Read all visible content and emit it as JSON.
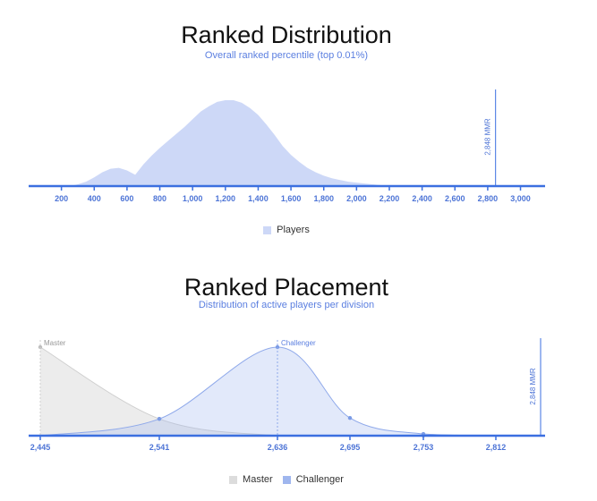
{
  "chart_data": [
    {
      "type": "area",
      "title": "Ranked Distribution",
      "subtitle": "Overall ranked percentile (top 0.01%)",
      "x_ticks": [
        200,
        400,
        600,
        800,
        1000,
        1200,
        1400,
        1600,
        1800,
        2000,
        2200,
        2400,
        2600,
        2800,
        3000
      ],
      "x_tick_labels": [
        "200",
        "400",
        "600",
        "800",
        "1,000",
        "1,200",
        "1,400",
        "1,600",
        "1,800",
        "2,000",
        "2,200",
        "2,400",
        "2,600",
        "2,800",
        "3,000"
      ],
      "xlim": [
        0,
        3150
      ],
      "ylim": [
        0,
        1.0
      ],
      "series": [
        {
          "name": "Players",
          "color": "#cdd8f7",
          "x": [
            250,
            300,
            350,
            400,
            450,
            500,
            550,
            600,
            650,
            700,
            750,
            800,
            850,
            900,
            950,
            1000,
            1050,
            1100,
            1150,
            1200,
            1250,
            1300,
            1350,
            1400,
            1450,
            1500,
            1550,
            1600,
            1650,
            1700,
            1750,
            1800,
            1850,
            1900,
            1950,
            2000,
            2050,
            2100,
            2150,
            2200,
            2250,
            2300
          ],
          "y": [
            0.0,
            0.02,
            0.05,
            0.1,
            0.16,
            0.2,
            0.21,
            0.18,
            0.13,
            0.25,
            0.35,
            0.44,
            0.52,
            0.6,
            0.68,
            0.77,
            0.86,
            0.92,
            0.97,
            0.99,
            0.99,
            0.96,
            0.9,
            0.82,
            0.71,
            0.59,
            0.46,
            0.36,
            0.28,
            0.21,
            0.16,
            0.12,
            0.09,
            0.07,
            0.05,
            0.04,
            0.03,
            0.02,
            0.01,
            0.01,
            0.0,
            0.0
          ]
        }
      ],
      "marker": {
        "x": 2848,
        "label": "2,848 MMR"
      },
      "legend": [
        "Players"
      ],
      "legend_position": "bottom"
    },
    {
      "type": "area",
      "title": "Ranked Placement",
      "subtitle": "Distribution of active players per division",
      "x_ticks": [
        2445,
        2541,
        2636,
        2695,
        2753,
        2812
      ],
      "x_tick_labels": [
        "2,445",
        "2,541",
        "2,636",
        "2,695",
        "2,753",
        "2,812"
      ],
      "xlim": [
        2445,
        2870
      ],
      "ylim": [
        0,
        1.0
      ],
      "series": [
        {
          "name": "Master",
          "color": "#dcdcdc",
          "x": [
            2445,
            2541,
            2636,
            2695,
            2753,
            2812
          ],
          "y": [
            1.0,
            0.19,
            0.0,
            0.0,
            0.0,
            0.0
          ],
          "peak_label": "Master"
        },
        {
          "name": "Challenger",
          "color": "#9fb6ee",
          "x": [
            2445,
            2541,
            2636,
            2695,
            2753,
            2812
          ],
          "y": [
            0.0,
            0.19,
            1.0,
            0.2,
            0.02,
            0.0
          ],
          "peak_label": "Challenger"
        }
      ],
      "marker": {
        "x": 2848,
        "label": "2,848 MMR"
      },
      "legend": [
        "Master",
        "Challenger"
      ],
      "legend_position": "bottom"
    }
  ]
}
